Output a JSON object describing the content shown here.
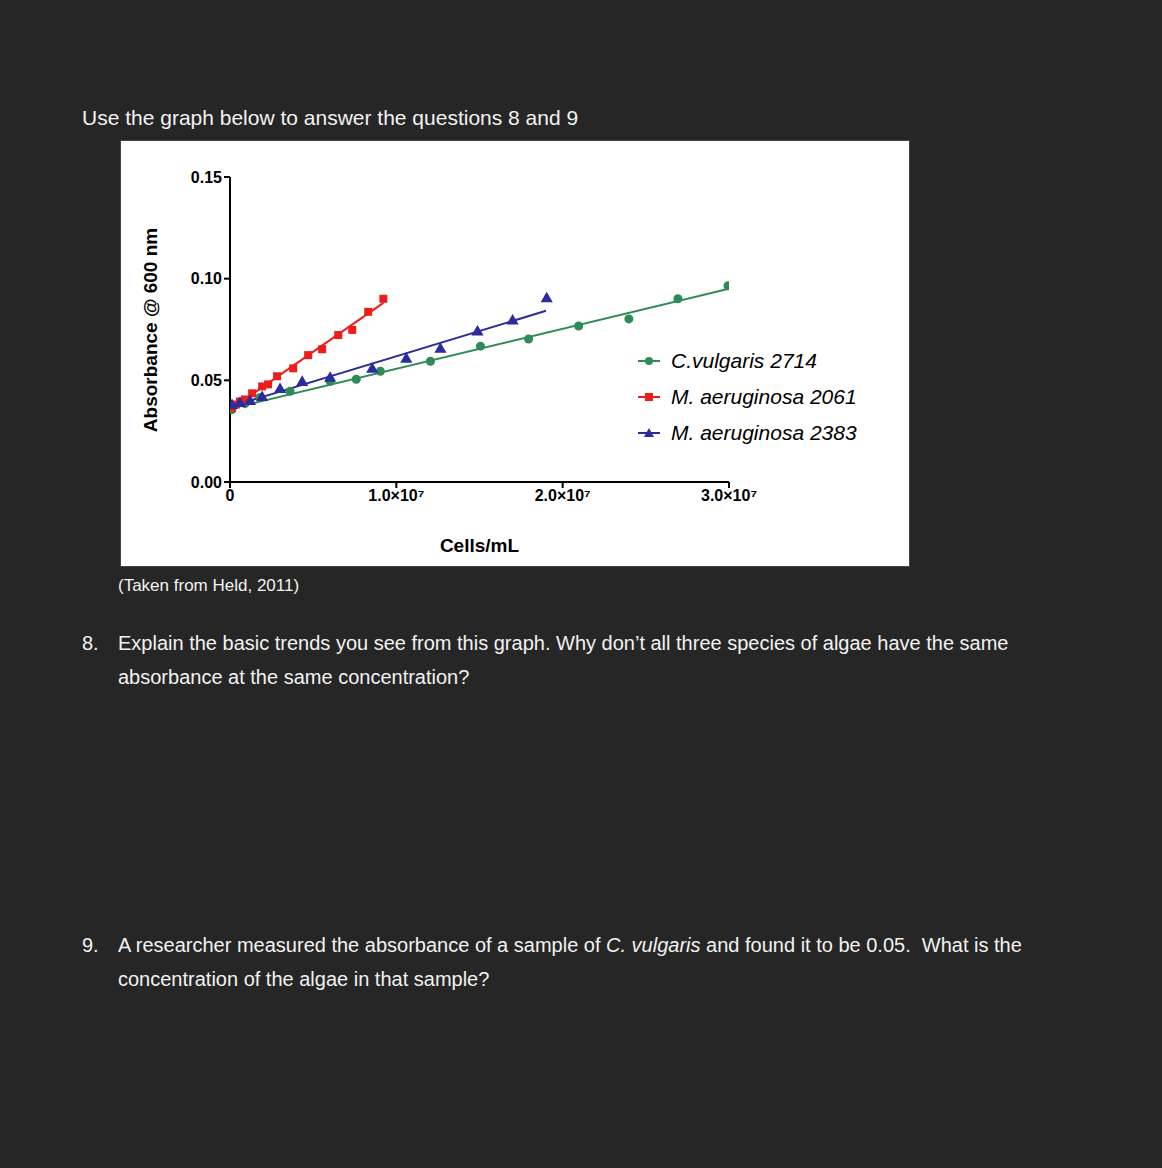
{
  "header": "Use the graph below to answer the questions 8 and 9",
  "chart_data": {
    "type": "scatter",
    "x_label": "Cells/mL",
    "y_label": "Absorbance @ 600 nm",
    "xlim": [
      0,
      30000000
    ],
    "ylim": [
      0,
      0.15
    ],
    "xticks": [
      0,
      {
        "value": 10000000,
        "label": "1.0×10⁷"
      },
      {
        "value": 20000000,
        "label": "2.0×10⁷"
      },
      {
        "value": 30000000,
        "label": "3.0×10⁷"
      }
    ],
    "yticks": [
      {
        "value": 0,
        "label": "0.00"
      },
      0.05,
      {
        "value": 0.1,
        "label": "0.10"
      },
      0.15
    ],
    "grid": false,
    "legend": "right",
    "series": [
      {
        "name": "C.vulgaris 2714",
        "color": "#2e8b57",
        "marker": "circle",
        "line_style": "solid",
        "x": [
          120000,
          900000,
          1810000,
          3610000,
          6020000,
          7590000,
          9040000,
          12050000,
          15060000,
          17950000,
          20960000,
          23980000,
          26930000,
          29940000
        ],
        "values": [
          0.0356,
          0.0386,
          0.0416,
          0.0446,
          0.0495,
          0.0505,
          0.0545,
          0.0594,
          0.0668,
          0.0703,
          0.0767,
          0.0802,
          0.0901,
          0.0965
        ],
        "fit": {
          "x": [
            0,
            30000000
          ],
          "values": [
            0.036,
            0.095
          ]
        }
      },
      {
        "name": "M. aeruginosa 2061",
        "color": "#ee1c1c",
        "marker": "square",
        "line_style": "solid",
        "x": [
          120000,
          360000,
          600000,
          900000,
          1330000,
          1930000,
          2290000,
          2830000,
          3800000,
          4700000,
          5540000,
          6510000,
          7350000,
          8310000,
          9220000
        ],
        "values": [
          0.0366,
          0.0381,
          0.0396,
          0.0406,
          0.0436,
          0.047,
          0.048,
          0.052,
          0.0559,
          0.0624,
          0.0653,
          0.0723,
          0.0748,
          0.0837,
          0.0901
        ],
        "fit": {
          "x": [
            0,
            9220000
          ],
          "values": [
            0.0356,
            0.0881
          ]
        }
      },
      {
        "name": "M. aeruginosa 2383",
        "color": "#2b2b9a",
        "marker": "triangle",
        "line_style": "solid",
        "x": [
          120000,
          600000,
          1200000,
          1930000,
          3010000,
          4340000,
          6020000,
          8550000,
          10600000,
          12650000,
          14880000,
          16990000,
          19040000
        ],
        "values": [
          0.0376,
          0.0386,
          0.0396,
          0.0416,
          0.0455,
          0.049,
          0.051,
          0.0554,
          0.0604,
          0.0653,
          0.0738,
          0.0792,
          0.0901
        ],
        "fit": {
          "x": [
            0,
            19000000
          ],
          "values": [
            0.037,
            0.0842
          ]
        }
      }
    ]
  },
  "caption": "(Taken from Held, 2011)",
  "questions": [
    {
      "number": "8.",
      "lines": [
        [
          {
            "text": "Explain the basic trends you see from this graph. Why don’t all three species of algae have the same",
            "italic": false
          }
        ],
        [
          {
            "text": "absorbance at the same concentration?",
            "italic": false
          }
        ]
      ]
    },
    {
      "number": "9.",
      "lines": [
        [
          {
            "text": "A researcher measured the absorbance of a sample of ",
            "italic": false
          },
          {
            "text": "C. vulgaris",
            "italic": true
          },
          {
            "text": " and found it to be 0.05.  What is the",
            "italic": false
          }
        ],
        [
          {
            "text": "concentration of the algae in that sample?",
            "italic": false
          }
        ]
      ]
    }
  ]
}
